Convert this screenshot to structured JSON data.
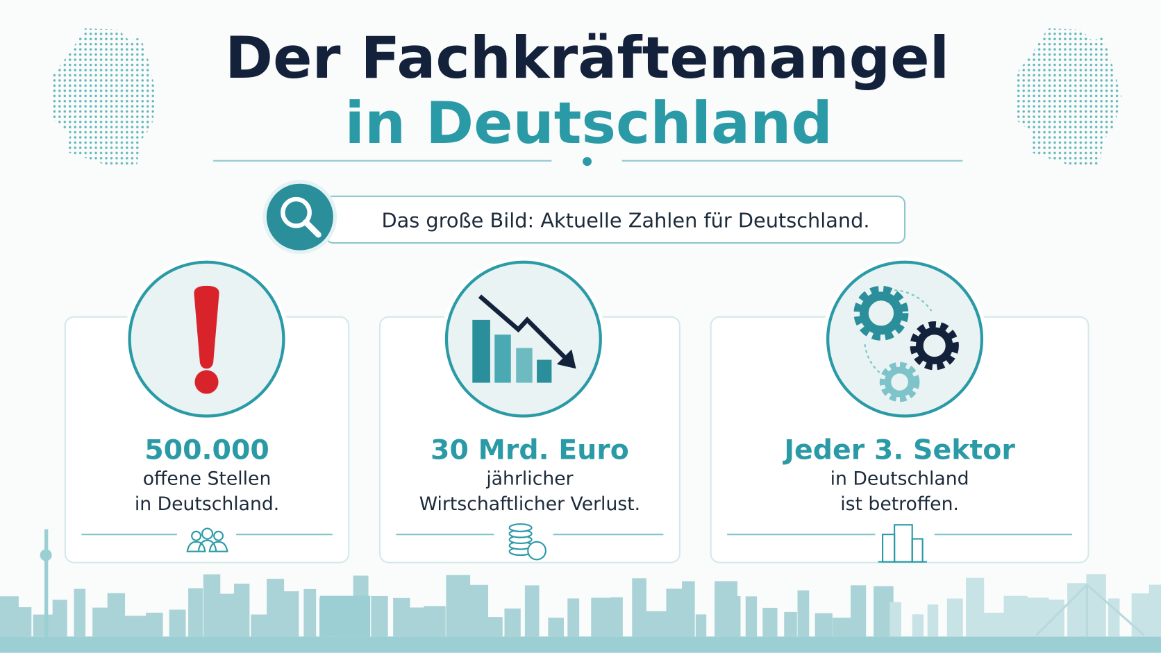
{
  "header": {
    "title_line1": "Der Fachkräftemangel",
    "title_line2": "in Deutschland"
  },
  "banner": {
    "text": "Das große Bild: Aktuelle Zahlen für Deutschland."
  },
  "cards": [
    {
      "headline": "500.000",
      "lines": [
        "offene Stellen",
        "in Deutschland."
      ]
    },
    {
      "headline": "30 Mrd. Euro",
      "lines": [
        "jährlicher",
        "Wirtschaftlicher Verlust."
      ]
    },
    {
      "headline": "Jeder 3. Sektor",
      "lines": [
        "in Deutschland",
        "ist betroffen."
      ]
    }
  ]
}
